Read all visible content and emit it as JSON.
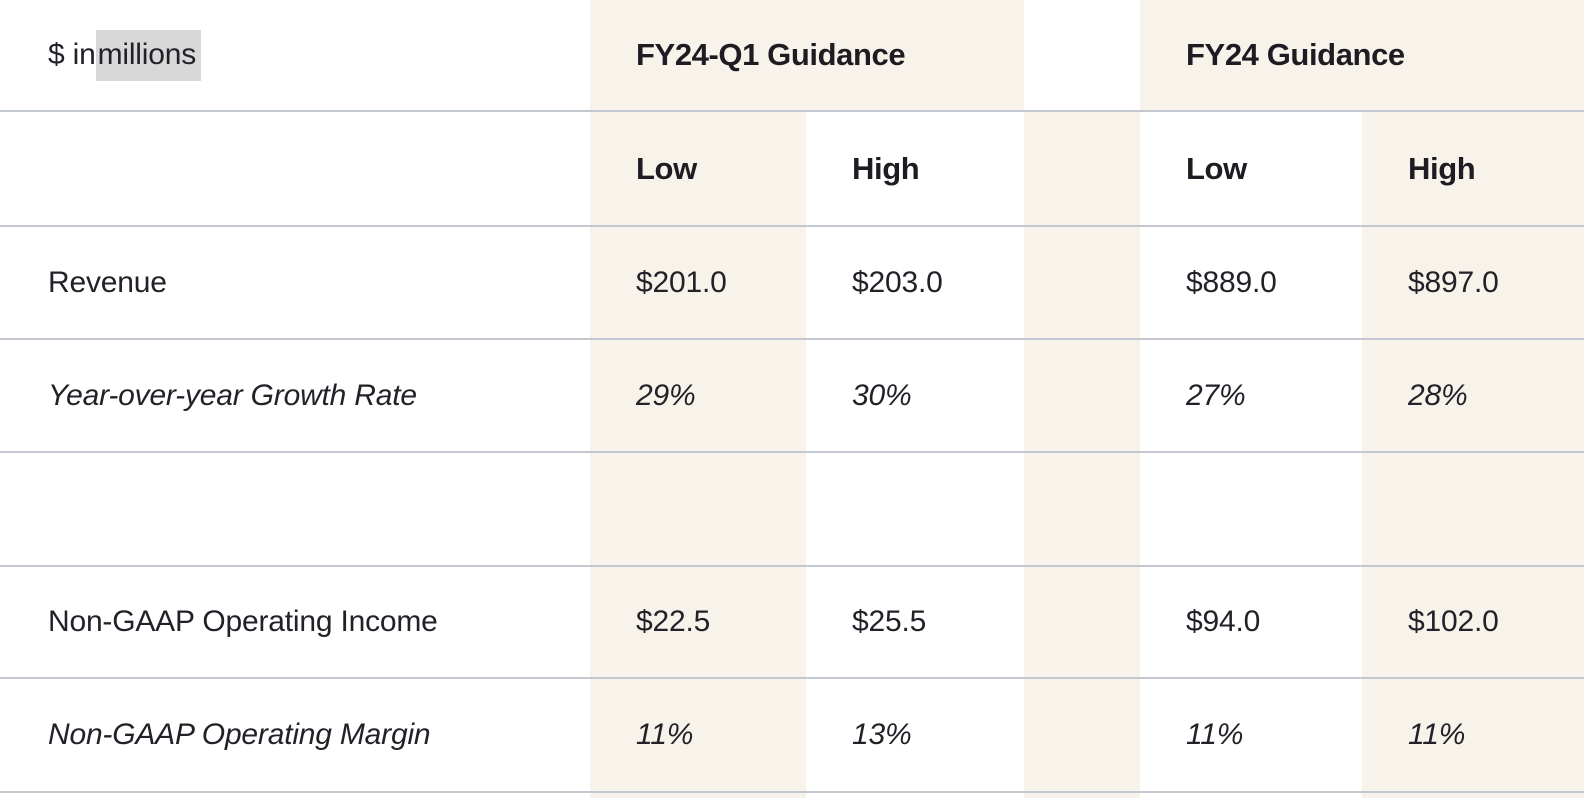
{
  "table": {
    "units_note": {
      "prefix": "$ in ",
      "highlighted": "millions"
    },
    "column_groups": {
      "q1": "FY24-Q1 Guidance",
      "fy": "FY24 Guidance"
    },
    "subheaders": [
      "Low",
      "High",
      "Low",
      "High"
    ],
    "rows": [
      {
        "label": "Revenue",
        "italic": false,
        "values": [
          "$201.0",
          "$203.0",
          "$889.0",
          "$897.0"
        ]
      },
      {
        "label": "Year-over-year Growth Rate",
        "italic": true,
        "values": [
          "29%",
          "30%",
          "27%",
          "28%"
        ]
      },
      {
        "label": "",
        "italic": false,
        "values": [
          "",
          "",
          "",
          ""
        ]
      },
      {
        "label": "Non-GAAP Operating Income",
        "italic": false,
        "values": [
          "$22.5",
          "$25.5",
          "$94.0",
          "$102.0"
        ]
      },
      {
        "label": "Non-GAAP Operating Margin",
        "italic": true,
        "values": [
          "11%",
          "13%",
          "11%",
          "11%"
        ]
      }
    ]
  },
  "colors": {
    "cream": "#f7f3eb",
    "border": "#c2c7d0",
    "text": "#232128",
    "heading": "#1e1c22",
    "highlight": "#d8d8d8"
  }
}
